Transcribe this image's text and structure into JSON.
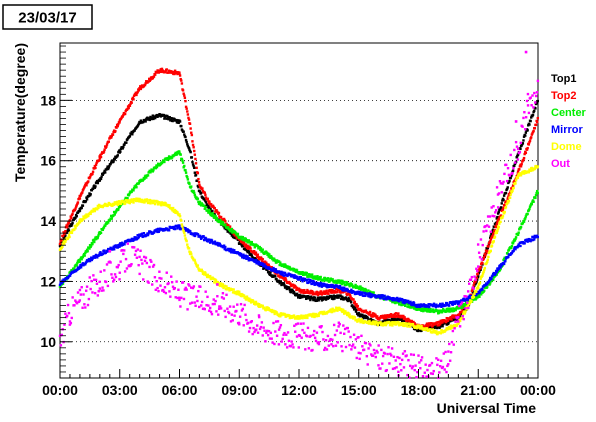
{
  "header": {
    "date_label": "23/03/17"
  },
  "chart_data": {
    "type": "scatter",
    "xlabel": "Universal Time",
    "ylabel": "Temperature(degree)",
    "xlim": [
      0,
      24
    ],
    "ylim": [
      8.8,
      19.9
    ],
    "x_ticks": [
      0,
      3,
      6,
      9,
      12,
      15,
      18,
      21,
      24
    ],
    "x_tick_labels": [
      "00:00",
      "03:00",
      "06:00",
      "09:00",
      "12:00",
      "15:00",
      "18:00",
      "21:00",
      "00:00"
    ],
    "y_ticks": [
      10,
      12,
      14,
      16,
      18
    ],
    "y_tick_labels": [
      "10",
      "12",
      "14",
      "16",
      "18"
    ],
    "grid": "horizontal dotted",
    "legend_position": "right",
    "series": [
      {
        "name": "Top1",
        "color": "#000000",
        "x": [
          0,
          1,
          2,
          3,
          4,
          5,
          6,
          6.5,
          7,
          7.5,
          8,
          9,
          10,
          11,
          12,
          13,
          14,
          14.5,
          15,
          16,
          17,
          18,
          19,
          20,
          20.5,
          21,
          22,
          23,
          24
        ],
        "y": [
          13.2,
          14.4,
          15.4,
          16.3,
          17.3,
          17.5,
          17.3,
          16.4,
          15.0,
          14.4,
          14.0,
          13.3,
          12.6,
          12.0,
          11.5,
          11.4,
          11.5,
          11.4,
          10.9,
          10.6,
          10.8,
          10.4,
          10.5,
          10.8,
          11.2,
          12.2,
          14.2,
          16.2,
          18.0
        ]
      },
      {
        "name": "Top2",
        "color": "#ff0000",
        "x": [
          0,
          1,
          2,
          3,
          4,
          5,
          6,
          6.5,
          7,
          7.5,
          8,
          9,
          10,
          11,
          12,
          13,
          14,
          14.5,
          15,
          16,
          17,
          18,
          19,
          20,
          20.5,
          21,
          22,
          23,
          24
        ],
        "y": [
          13.3,
          14.8,
          16.1,
          17.3,
          18.4,
          19.0,
          18.9,
          17.3,
          15.2,
          14.6,
          14.2,
          13.4,
          12.8,
          12.2,
          11.7,
          11.6,
          11.7,
          11.6,
          11.1,
          10.8,
          10.9,
          10.5,
          10.6,
          10.9,
          11.3,
          12.3,
          14.0,
          15.6,
          17.4
        ]
      },
      {
        "name": "Center",
        "color": "#00ee00",
        "x": [
          0,
          1,
          2,
          3,
          4,
          5,
          6,
          6.5,
          7,
          8,
          9,
          10,
          11,
          12,
          13,
          14,
          15,
          16,
          17,
          18,
          19,
          20,
          21,
          22,
          23,
          24
        ],
        "y": [
          11.8,
          12.7,
          13.6,
          14.5,
          15.3,
          15.9,
          16.3,
          15.2,
          14.6,
          14.0,
          13.5,
          13.1,
          12.6,
          12.3,
          12.1,
          12.0,
          11.8,
          11.5,
          11.3,
          11.1,
          11.0,
          11.1,
          11.5,
          12.3,
          13.6,
          15.0
        ]
      },
      {
        "name": "Mirror",
        "color": "#0000ff",
        "x": [
          0,
          1,
          2,
          3,
          4,
          5,
          6,
          7,
          8,
          9,
          10,
          11,
          12,
          13,
          14,
          15,
          16,
          17,
          18,
          19,
          20,
          21,
          22,
          23,
          24
        ],
        "y": [
          11.9,
          12.5,
          12.9,
          13.2,
          13.5,
          13.7,
          13.8,
          13.5,
          13.2,
          12.9,
          12.6,
          12.3,
          12.1,
          11.9,
          11.8,
          11.6,
          11.5,
          11.4,
          11.2,
          11.2,
          11.3,
          11.6,
          12.4,
          13.2,
          13.5
        ]
      },
      {
        "name": "Dome",
        "color": "#ffff00",
        "x": [
          0,
          1,
          2,
          3,
          4,
          5,
          5.5,
          6,
          6.5,
          7,
          8,
          9,
          10,
          11,
          12,
          13,
          14,
          15,
          16,
          17,
          18,
          19,
          20,
          21,
          22,
          23,
          24
        ],
        "y": [
          13.1,
          14.0,
          14.5,
          14.6,
          14.7,
          14.6,
          14.5,
          14.2,
          13.0,
          12.4,
          11.9,
          11.6,
          11.2,
          10.9,
          10.8,
          10.9,
          11.1,
          10.7,
          10.6,
          10.6,
          10.5,
          10.3,
          10.6,
          11.8,
          13.8,
          15.5,
          15.8
        ]
      },
      {
        "name": "Out",
        "color": "#ff00ff",
        "x": [
          0,
          0.5,
          1,
          2,
          3,
          3.5,
          4,
          5,
          6,
          7,
          8,
          9,
          10,
          11,
          12,
          13,
          14,
          15,
          16,
          17,
          18,
          19,
          19.5,
          20,
          20.5,
          21,
          22,
          23,
          23.5,
          24
        ],
        "y": [
          10.0,
          11.0,
          11.4,
          12.0,
          12.5,
          12.9,
          12.6,
          12.0,
          11.6,
          11.4,
          11.3,
          11.0,
          10.5,
          10.3,
          10.2,
          10.1,
          10.2,
          9.8,
          9.5,
          9.3,
          9.1,
          9.0,
          9.4,
          10.8,
          11.5,
          12.8,
          14.8,
          16.5,
          17.8,
          18.4
        ]
      }
    ]
  }
}
